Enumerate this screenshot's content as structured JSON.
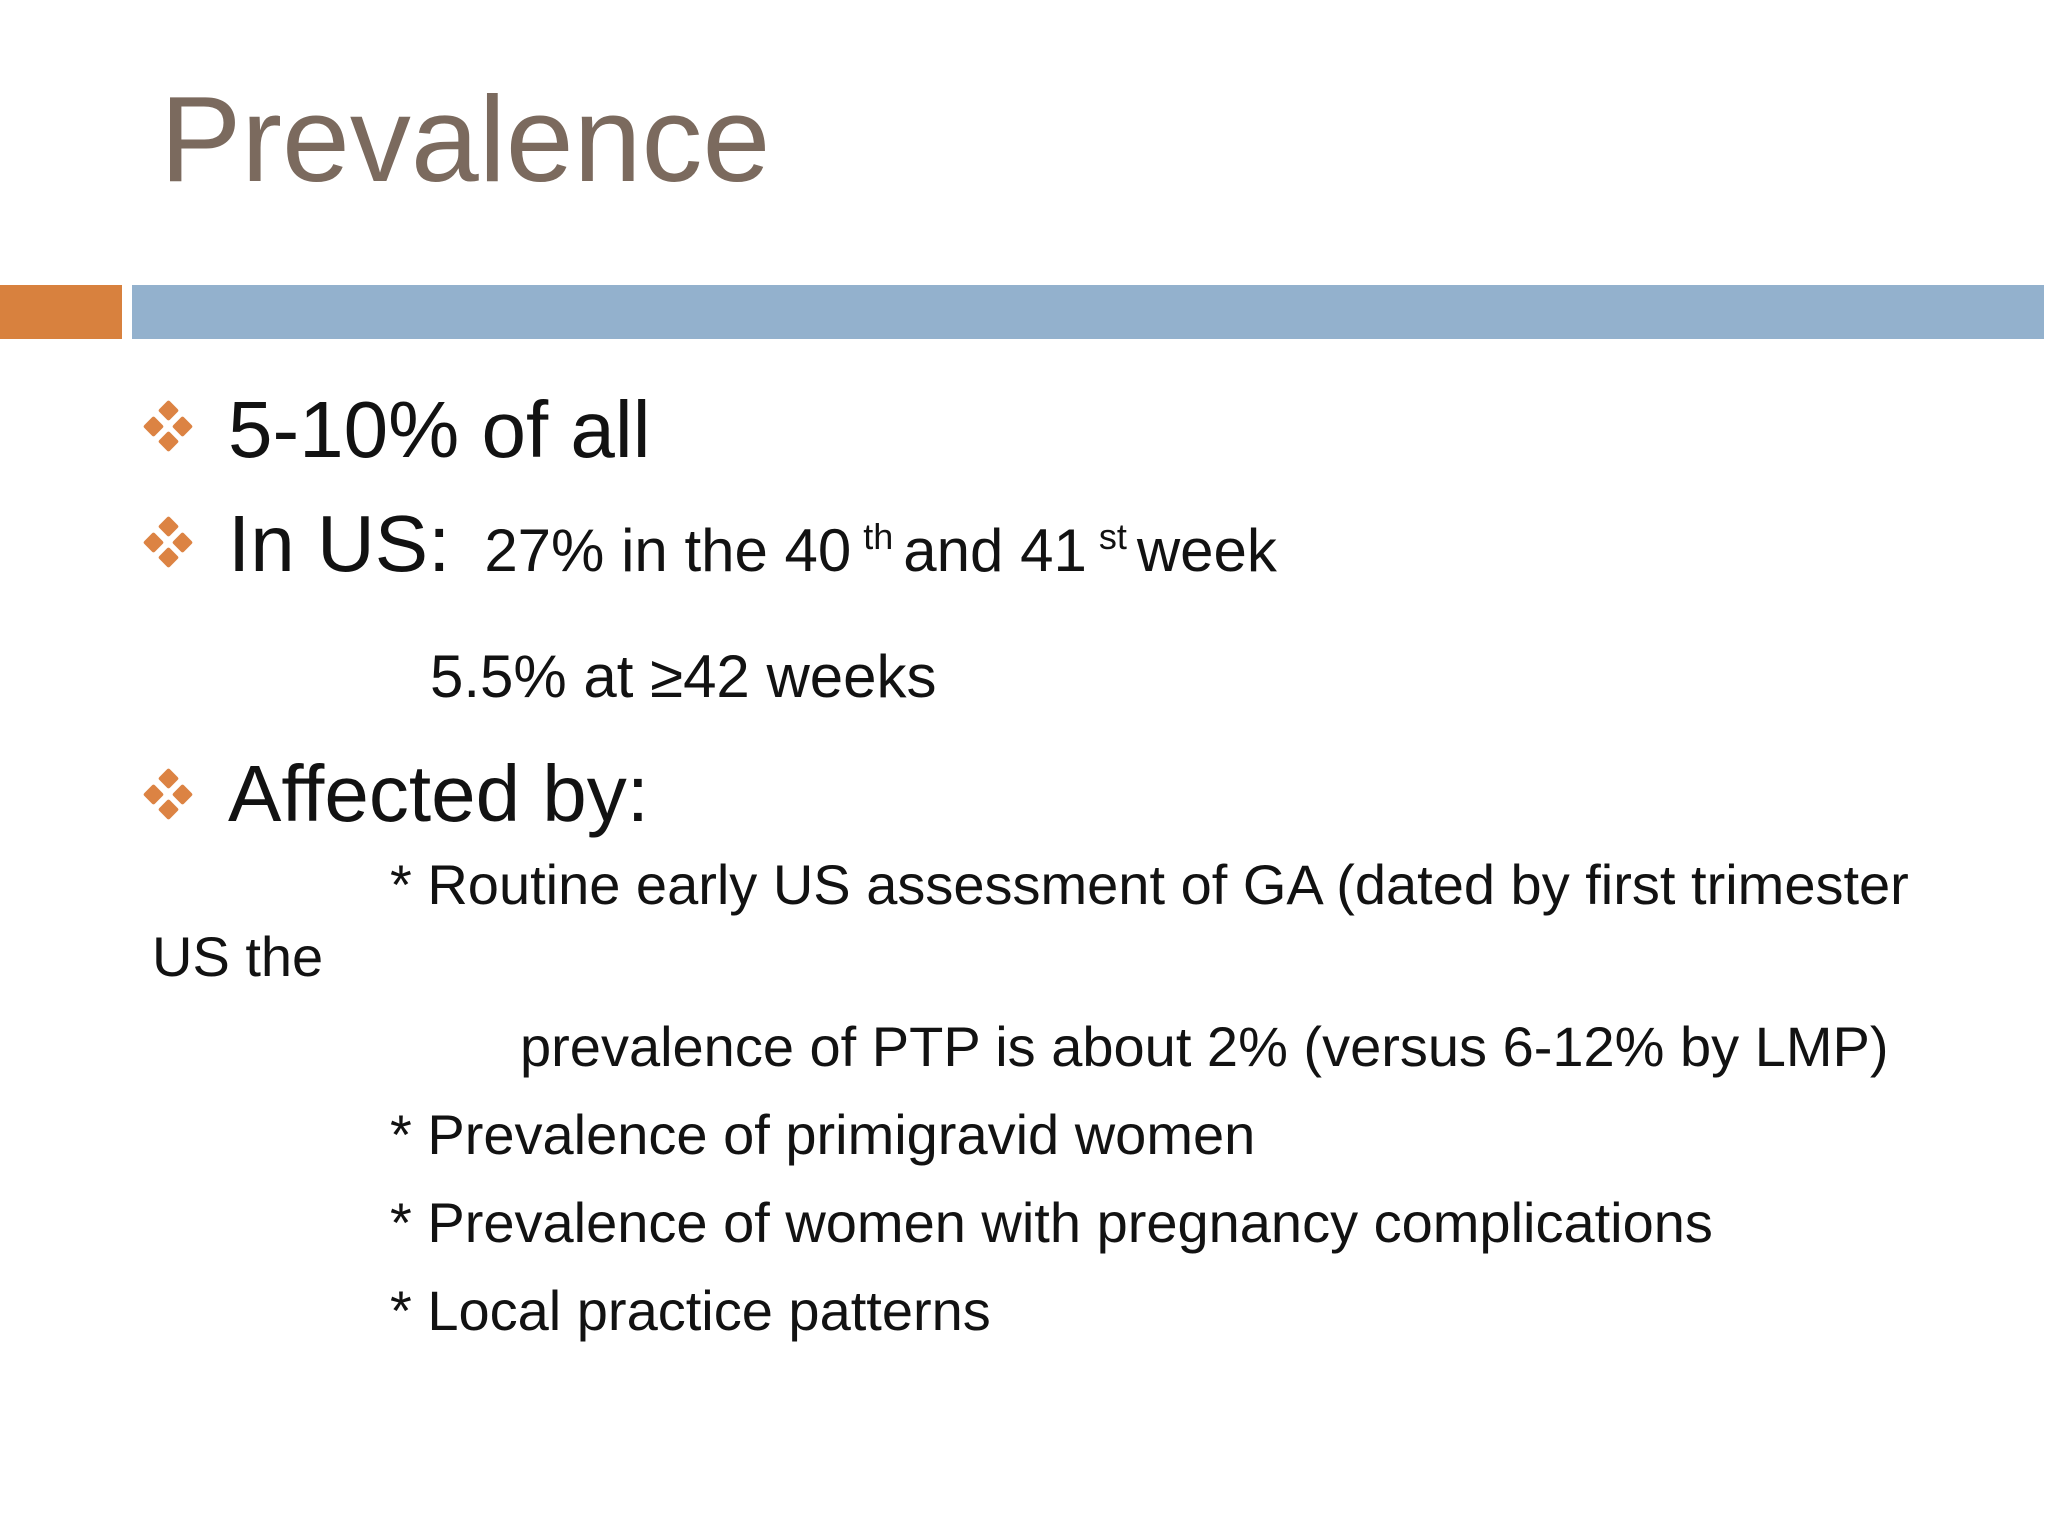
{
  "colors": {
    "title-color": "#7b6a5e",
    "accent-orange": "#d8813e",
    "accent-blue": "#93b1cd",
    "bullet-orange": "#dc8343",
    "text-color": "#121212",
    "bg": "#ffffff"
  },
  "slide": {
    "title": "Prevalence",
    "bullet1": "5-10% of all",
    "bullet2": {
      "label": "In US:",
      "seg1": "27% in the 40",
      "sup1": "th",
      "seg2": "and 41",
      "sup2": "st",
      "seg3": "week"
    },
    "line_42weeks": "5.5% at ≥42 weeks",
    "bullet3": "Affected by:",
    "sublines": {
      "routine": "* Routine early US assessment of GA (dated by first trimester",
      "us_the": "US the",
      "ptp": "prevalence of PTP is about 2% (versus 6-12% by LMP)",
      "primigravid": "* Prevalence of primigravid women",
      "complications": "* Prevalence of women with pregnancy complications",
      "local": "* Local practice patterns"
    }
  }
}
